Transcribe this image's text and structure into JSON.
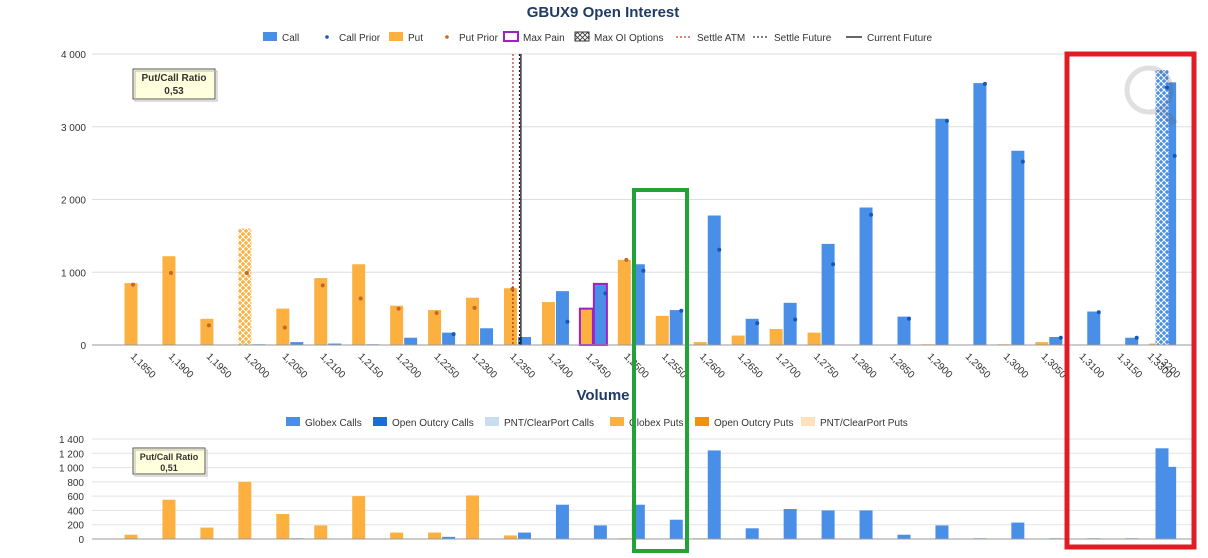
{
  "chart_data": [
    {
      "type": "bar",
      "title": "GBUX9 Open Interest",
      "legend": {
        "position": "top",
        "items": [
          "Call",
          "Call Prior",
          "Put",
          "Put Prior",
          "Max Pain",
          "Max OI Options",
          "Settle ATM",
          "Settle Future",
          "Current Future"
        ]
      },
      "ratio_box": {
        "label": "Put/Call Ratio",
        "value": "0,53"
      },
      "y_ticks": [
        "0",
        "1 000",
        "2 000",
        "3 000",
        "4 000"
      ],
      "ylim": [
        0,
        4000
      ],
      "categories": [
        "1,1850",
        "1,1900",
        "1,1950",
        "1,2000",
        "1,2050",
        "1,2100",
        "1,2150",
        "1,2200",
        "1,2250",
        "1,2300",
        "1,2350",
        "1,2400",
        "1,2450",
        "1,2500",
        "1,2550",
        "1,2600",
        "1,2650",
        "1,2700",
        "1,2750",
        "1,2800",
        "1,2850",
        "1,2900",
        "1,2950",
        "1,3000",
        "1,3050",
        "1,3100",
        "1,3150",
        "1,3200",
        "1,3300"
      ],
      "series": [
        {
          "name": "Call",
          "values": [
            0,
            0,
            0,
            10,
            40,
            20,
            10,
            100,
            170,
            230,
            110,
            740,
            840,
            1110,
            480,
            1780,
            360,
            580,
            1390,
            1890,
            390,
            3110,
            3600,
            2670,
            110,
            460,
            100,
            3610,
            3780
          ]
        },
        {
          "name": "Call Prior",
          "values": [
            null,
            null,
            null,
            null,
            null,
            null,
            null,
            null,
            150,
            null,
            null,
            320,
            710,
            1020,
            470,
            1310,
            300,
            350,
            1110,
            1790,
            360,
            3080,
            3590,
            2520,
            100,
            450,
            100,
            2600,
            3540
          ]
        },
        {
          "name": "Put",
          "values": [
            850,
            1220,
            360,
            1600,
            500,
            920,
            1110,
            540,
            480,
            650,
            780,
            590,
            500,
            1170,
            400,
            40,
            130,
            220,
            170,
            0,
            0,
            10,
            0,
            10,
            40,
            0,
            0,
            20,
            0
          ]
        },
        {
          "name": "Put Prior",
          "values": [
            830,
            990,
            270,
            990,
            240,
            820,
            640,
            500,
            440,
            510,
            770,
            null,
            null,
            1170,
            null,
            null,
            null,
            null,
            null,
            null,
            null,
            null,
            null,
            null,
            null,
            null,
            null,
            null,
            null
          ]
        }
      ],
      "max_oi_index": {
        "call": 28,
        "put": 3
      },
      "max_pain_index": 12,
      "settle_atm_index": 9.88,
      "settle_future_index": 10.05,
      "current_future_index": 10.09,
      "colors": {
        "call": "#4a8fe7",
        "put": "#fbb040",
        "call_prior": "#1757b8",
        "put_prior": "#c0672a",
        "max_pain": "#a020c8",
        "settle_atm": "#cc0000",
        "grid": "#dddddd"
      }
    },
    {
      "type": "bar",
      "title": "Volume",
      "legend": {
        "position": "top",
        "items": [
          "Globex Calls",
          "Open Outcry Calls",
          "PNT/ClearPort Calls",
          "Globex Puts",
          "Open Outcry Puts",
          "PNT/ClearPort Puts"
        ]
      },
      "ratio_box": {
        "label": "Put/Call Ratio",
        "value": "0,51"
      },
      "y_ticks": [
        "0",
        "200",
        "400",
        "600",
        "800",
        "1 000",
        "1 200",
        "1 400"
      ],
      "ylim": [
        0,
        1400
      ],
      "series": [
        {
          "name": "Globex Calls",
          "values": [
            0,
            0,
            0,
            0,
            10,
            0,
            0,
            0,
            30,
            0,
            90,
            480,
            190,
            480,
            270,
            1240,
            150,
            420,
            400,
            400,
            60,
            190,
            10,
            230,
            10,
            10,
            10,
            1010,
            1270
          ]
        },
        {
          "name": "Globex Puts",
          "values": [
            60,
            550,
            160,
            800,
            350,
            190,
            600,
            90,
            90,
            610,
            50,
            0,
            0,
            10,
            0,
            10,
            0,
            0,
            0,
            0,
            0,
            0,
            0,
            0,
            0,
            0,
            0,
            0,
            0
          ]
        }
      ],
      "colors": {
        "call": "#4a8fe7",
        "open_outcry_calls": "#1a6fd6",
        "pnt_calls": "#c9dcf0",
        "put": "#fbb040",
        "open_outcry_puts": "#f0920a",
        "pnt_puts": "#fde2bb"
      }
    }
  ],
  "annotations": {
    "green_box": {
      "color": "#22a33a",
      "category": "1,2600"
    },
    "red_box": {
      "color": "#e01c24",
      "categories": [
        "1,3200",
        "1,3300"
      ]
    }
  }
}
